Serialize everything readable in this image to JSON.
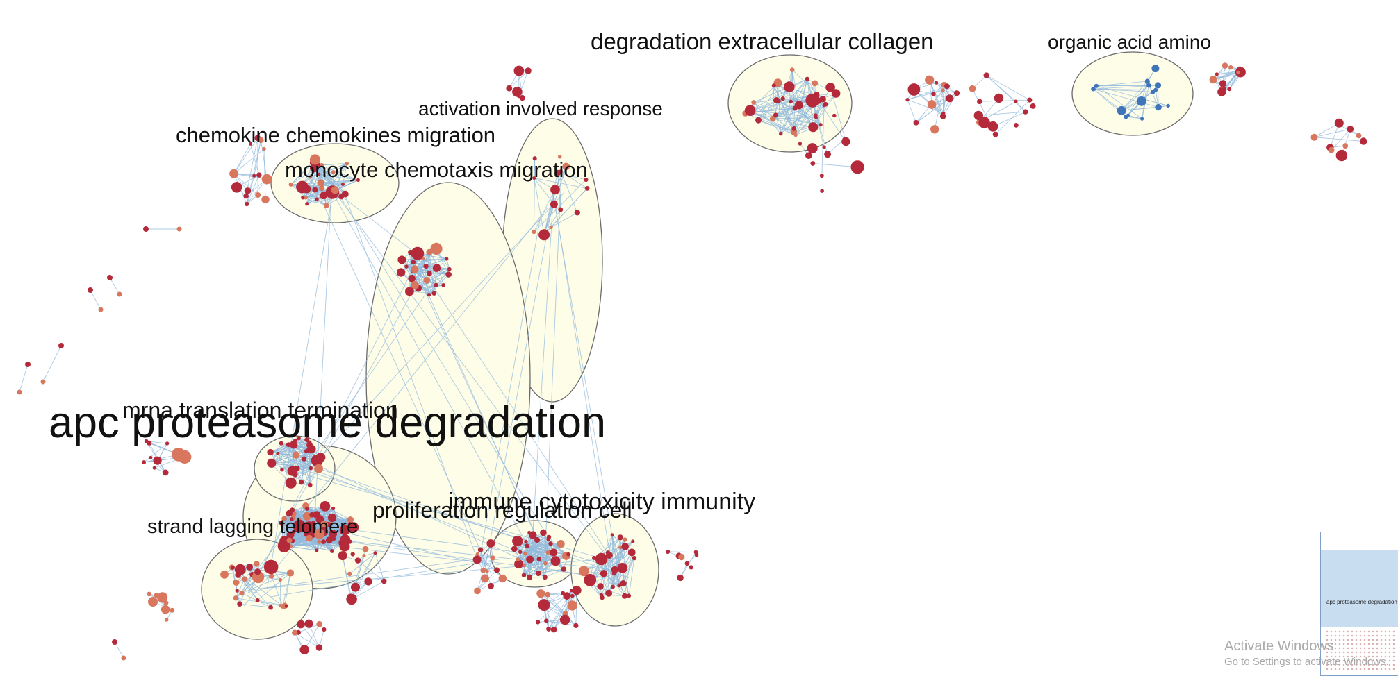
{
  "clusters": [
    {
      "id": "apc",
      "label": "apc proteasome degradation",
      "size": "xl"
    },
    {
      "id": "mrna",
      "label": "mrna translation termination",
      "size": "l"
    },
    {
      "id": "strand",
      "label": "strand lagging telomere",
      "size": "m"
    },
    {
      "id": "prolif",
      "label": "proliferation regulation cell",
      "size": "m"
    },
    {
      "id": "immune",
      "label": "immune cytotoxicity immunity",
      "size": "l"
    },
    {
      "id": "monocyte",
      "label": "monocyte chemotaxis migration",
      "size": "l"
    },
    {
      "id": "chemokine",
      "label": "chemokine chemokines migration",
      "size": "l"
    },
    {
      "id": "activation",
      "label": "activation involved response",
      "size": "m"
    },
    {
      "id": "degradation",
      "label": "degradation extracellular collagen",
      "size": "l"
    },
    {
      "id": "organic",
      "label": "organic acid amino",
      "size": "m"
    }
  ],
  "colors": {
    "node_red": "#b52a3a",
    "node_salmon": "#d8765e",
    "node_blue": "#3f74b8",
    "edge": "#8fb8dc",
    "ellipse_fill": "#fefde8"
  },
  "overview": {
    "label": "apc proteasome degradation"
  },
  "watermark": {
    "title": "Activate Windows",
    "subtitle": "Go to Settings to activate Windows."
  }
}
